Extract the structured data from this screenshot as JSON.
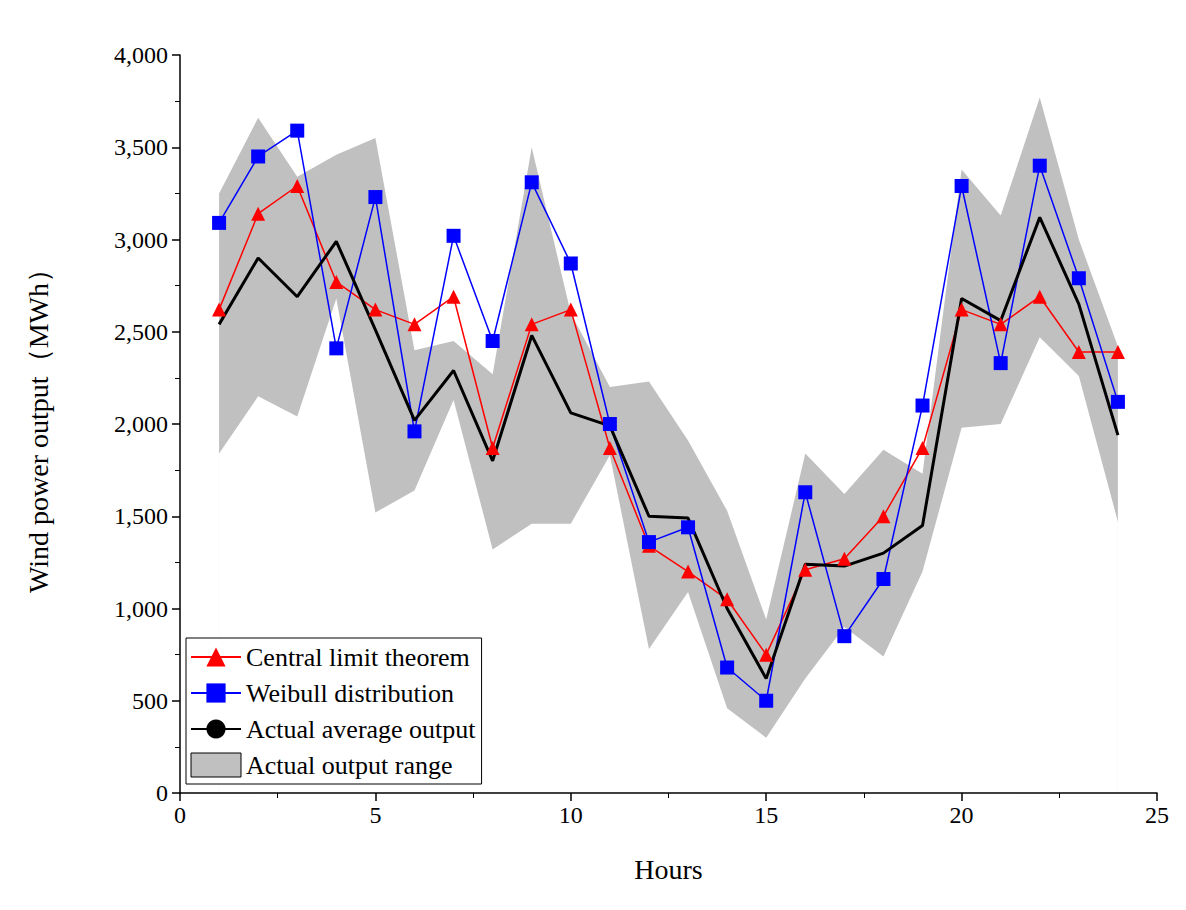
{
  "chart_data": {
    "type": "line",
    "x_label": "Hours",
    "y_label": "Wind power output（MWh）",
    "xlim": [
      0,
      25
    ],
    "xticks": [
      0,
      5,
      10,
      15,
      20,
      25
    ],
    "ylim": [
      0,
      4000
    ],
    "yticks": [
      0,
      500,
      1000,
      1500,
      2000,
      2500,
      3000,
      3500,
      4000
    ],
    "grid": false,
    "legend": "lower left",
    "x": [
      1,
      2,
      3,
      4,
      5,
      6,
      7,
      8,
      9,
      10,
      11,
      12,
      13,
      14,
      15,
      16,
      17,
      18,
      19,
      20,
      21,
      22,
      23,
      24
    ],
    "series": [
      {
        "name": "Actual output range",
        "type": "band",
        "color": "#c0c0c0",
        "lower": [
          1840,
          2150,
          2040,
          2680,
          1520,
          1640,
          2130,
          1320,
          1460,
          1460,
          1830,
          780,
          1090,
          460,
          300,
          620,
          900,
          740,
          1200,
          1980,
          2000,
          2470,
          2260,
          1470
        ],
        "upper": [
          3250,
          3660,
          3340,
          3460,
          3550,
          2400,
          2450,
          2270,
          3500,
          2600,
          2200,
          2230,
          1910,
          1530,
          940,
          1840,
          1620,
          1860,
          1730,
          3380,
          3130,
          3770,
          3000,
          2420
        ]
      },
      {
        "name": "Central limit theorem",
        "type": "line",
        "color": "#ff0000",
        "marker": "triangle",
        "values": [
          2620,
          3140,
          3290,
          2770,
          2620,
          2540,
          2690,
          1870,
          2540,
          2620,
          1870,
          1340,
          1200,
          1050,
          750,
          1210,
          1270,
          1500,
          1870,
          2620,
          2540,
          2690,
          2390,
          2390
        ]
      },
      {
        "name": "Weibull distribution",
        "type": "line",
        "color": "#0000ff",
        "marker": "square",
        "values": [
          3090,
          3450,
          3590,
          2410,
          3230,
          1960,
          3020,
          2450,
          3310,
          2870,
          2000,
          1360,
          1440,
          680,
          500,
          1630,
          850,
          1160,
          2100,
          3290,
          2330,
          3400,
          2790,
          2120
        ]
      },
      {
        "name": "Actual average output",
        "type": "line",
        "color": "#000000",
        "marker": "none",
        "values": [
          2540,
          2900,
          2690,
          2990,
          2510,
          2020,
          2290,
          1800,
          2480,
          2060,
          1990,
          1500,
          1490,
          1000,
          620,
          1240,
          1230,
          1300,
          1450,
          2680,
          2560,
          3120,
          2650,
          1940
        ]
      }
    ]
  }
}
